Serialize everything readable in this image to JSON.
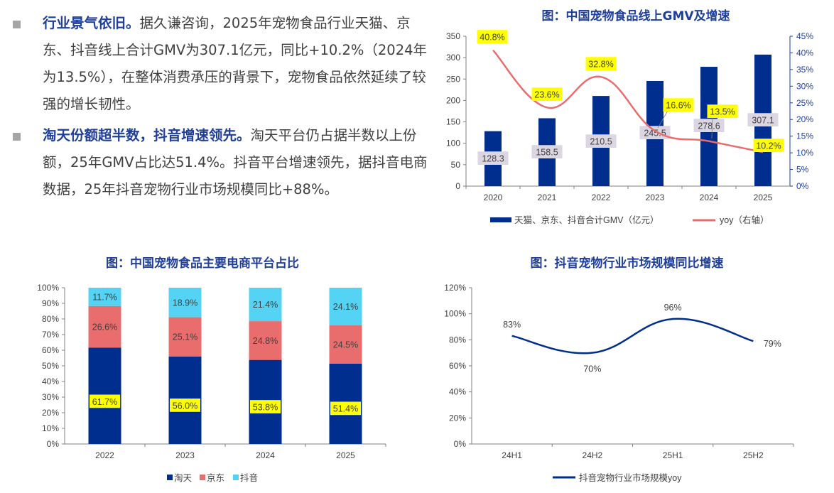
{
  "text": {
    "bullets": [
      {
        "lead": "行业景气依旧。",
        "body": "据久谦咨询，2025年宠物食品行业天猫、京东、抖音线上合计GMV为307.1亿元，同比+10.2%（2024年为13.5%），在整体消费承压的背景下，宠物食品依然延续了较强的增长韧性。"
      },
      {
        "lead": "淘天份额超半数，抖音增速领先。",
        "body": "淘天平台仍占据半数以上份额，25年GMV占比达51.4%。抖音平台增速领先，据抖音电商数据，25年抖音宠物行业市场规模同比+88%。"
      }
    ]
  },
  "colors": {
    "navy": "#002e8f",
    "red": "#e96d6d",
    "cyan": "#55d3f5",
    "highlight": "#ffff00",
    "label_bg": "#dcd6e3",
    "title": "#1f3f9a"
  },
  "chart_data": [
    {
      "id": "gmv",
      "type": "bar+line",
      "title": "图：中国宠物食品线上GMV及增速",
      "categories": [
        "2020",
        "2021",
        "2022",
        "2023",
        "2024",
        "2025"
      ],
      "bar_series": {
        "name": "天猫、京东、抖音合计GMV（亿元）",
        "values": [
          128.3,
          158.5,
          210.5,
          245.5,
          278.6,
          307.1
        ]
      },
      "line_series": {
        "name": "yoy（右轴）",
        "values": [
          40.8,
          23.6,
          32.8,
          16.6,
          13.5,
          10.2
        ]
      },
      "line_labels": [
        "40.8%",
        "23.6%",
        "32.8%",
        "16.6%",
        "13.5%",
        "10.2%"
      ],
      "y_left": {
        "min": 0,
        "max": 350,
        "ticks": [
          "0",
          "50",
          "100",
          "150",
          "200",
          "250",
          "300",
          "350"
        ]
      },
      "y_right": {
        "min": 0,
        "max": 45,
        "ticks": [
          "0%",
          "5%",
          "10%",
          "15%",
          "20%",
          "25%",
          "30%",
          "35%",
          "40%",
          "45%"
        ]
      },
      "legend_position": "bottom"
    },
    {
      "id": "platform",
      "type": "stacked-bar",
      "title": "图：中国宠物食品主要电商平台占比",
      "categories": [
        "2022",
        "2023",
        "2024",
        "2025"
      ],
      "series": [
        {
          "name": "淘天",
          "values": [
            61.7,
            56.0,
            53.8,
            51.4
          ],
          "labels": [
            "61.7%",
            "56.0%",
            "53.8%",
            "51.4%"
          ]
        },
        {
          "name": "京东",
          "values": [
            26.6,
            25.1,
            24.8,
            24.5
          ],
          "labels": [
            "26.6%",
            "25.1%",
            "24.8%",
            "24.5%"
          ]
        },
        {
          "name": "抖音",
          "values": [
            11.7,
            18.9,
            21.4,
            24.1
          ],
          "labels": [
            "11.7%",
            "18.9%",
            "21.4%",
            "24.1%"
          ]
        }
      ],
      "y": {
        "min": 0,
        "max": 100,
        "ticks": [
          "0%",
          "10%",
          "20%",
          "30%",
          "40%",
          "50%",
          "60%",
          "70%",
          "80%",
          "90%",
          "100%"
        ]
      },
      "legend_position": "bottom"
    },
    {
      "id": "douyin",
      "type": "line",
      "title": "图：抖音宠物行业市场规模同比增速",
      "categories": [
        "24H1",
        "24H2",
        "25H1",
        "25H2"
      ],
      "series": [
        {
          "name": "抖音宠物行业市场规模yoy",
          "values": [
            83,
            70,
            96,
            79
          ],
          "labels": [
            "83%",
            "70%",
            "96%",
            "79%"
          ]
        }
      ],
      "y": {
        "min": 0,
        "max": 120,
        "ticks": [
          "0%",
          "20%",
          "40%",
          "60%",
          "80%",
          "100%",
          "120%"
        ]
      },
      "legend_position": "bottom"
    }
  ]
}
